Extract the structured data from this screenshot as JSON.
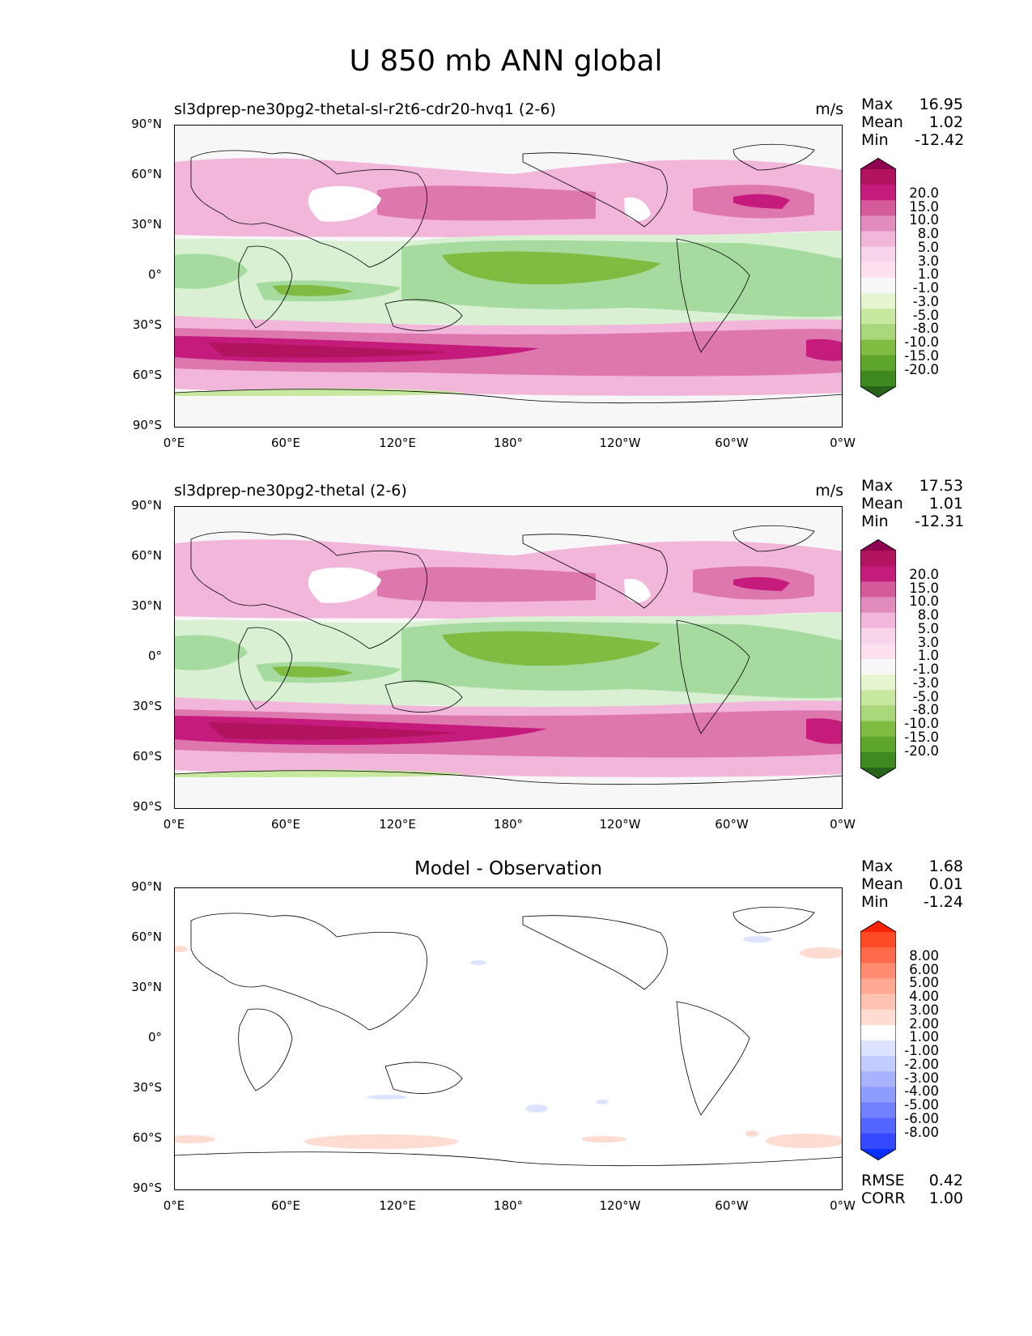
{
  "figure": {
    "title": "U 850 mb ANN global"
  },
  "panels": [
    {
      "id": "test",
      "title": "sl3dprep-ne30pg2-thetal-sl-r2t6-cdr20-hvq1 (2-6)",
      "units": "m/s",
      "stats": {
        "max_label": "Max",
        "max": "16.95",
        "mean_label": "Mean",
        "mean": "1.02",
        "min_label": "Min",
        "min": "-12.42"
      }
    },
    {
      "id": "reference",
      "title": "sl3dprep-ne30pg2-thetal (2-6)",
      "units": "m/s",
      "stats": {
        "max_label": "Max",
        "max": "17.53",
        "mean_label": "Mean",
        "mean": "1.01",
        "min_label": "Min",
        "min": "-12.31"
      }
    },
    {
      "id": "diff",
      "title": "Model - Observation",
      "stats": {
        "max_label": "Max",
        "max": "1.68",
        "mean_label": "Mean",
        "mean": "0.01",
        "min_label": "Min",
        "min": "-1.24"
      },
      "metrics": {
        "rmse_label": "RMSE",
        "rmse": "0.42",
        "corr_label": "CORR",
        "corr": "1.00"
      }
    }
  ],
  "axes": {
    "lat_ticks": [
      "90°N",
      "60°N",
      "30°N",
      "0°",
      "30°S",
      "60°S",
      "90°S"
    ],
    "lon_ticks": [
      "0°E",
      "60°E",
      "120°E",
      "180°",
      "120°W",
      "60°W",
      "0°W"
    ]
  },
  "colorbars": {
    "field": {
      "labels": [
        "20.0",
        "15.0",
        "10.0",
        "8.0",
        "5.0",
        "3.0",
        "1.0",
        "-1.0",
        "-3.0",
        "-5.0",
        "-8.0",
        "-10.0",
        "-15.0",
        "-20.0"
      ],
      "colors": [
        "#8e0152",
        "#b1135f",
        "#c51b7d",
        "#d55a9c",
        "#e28bbf",
        "#f1b6da",
        "#f7d4ea",
        "#fde0ef",
        "#f7f7f7",
        "#e6f5d0",
        "#c7e89f",
        "#a9d77a",
        "#7fbc41",
        "#5ea52c",
        "#3f8a1e",
        "#276419"
      ]
    },
    "diff": {
      "labels": [
        "8.00",
        "6.00",
        "5.00",
        "4.00",
        "3.00",
        "2.00",
        "1.00",
        "-1.00",
        "-2.00",
        "-3.00",
        "-4.00",
        "-5.00",
        "-6.00",
        "-8.00"
      ],
      "colors": [
        "#ff2200",
        "#ff4a26",
        "#ff6a4a",
        "#ff8c70",
        "#ffa892",
        "#ffc3b4",
        "#ffdcd2",
        "#ffffff",
        "#dde4ff",
        "#c2ccff",
        "#a8b4ff",
        "#8e9cff",
        "#7080ff",
        "#5266ff",
        "#3549ff",
        "#0a2eff"
      ]
    }
  }
}
